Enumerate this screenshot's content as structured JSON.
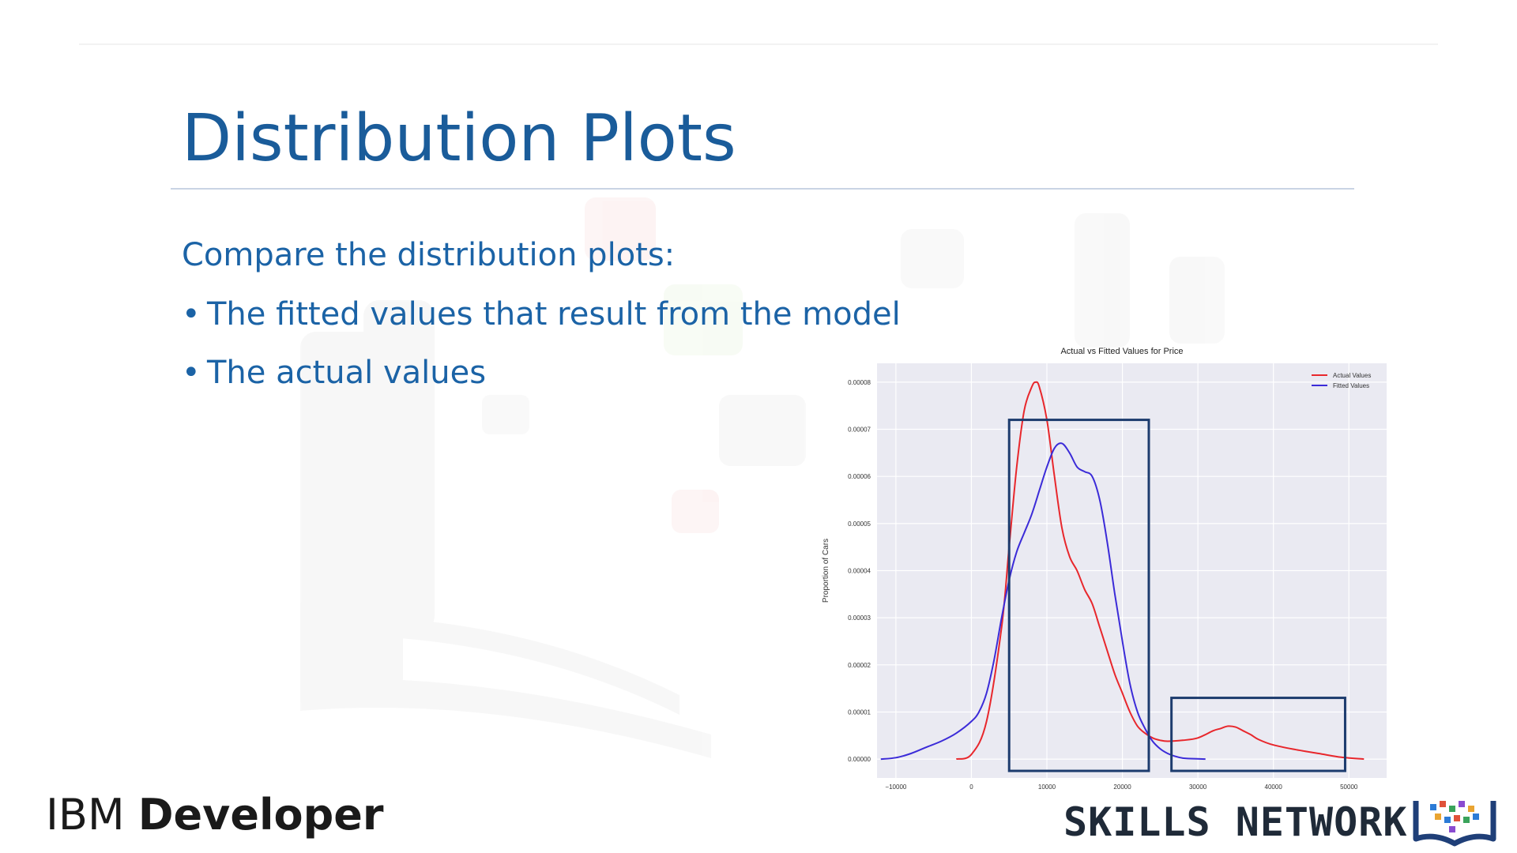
{
  "slide": {
    "title": "Distribution Plots",
    "intro": "Compare the distribution plots:",
    "bullets": [
      "The fitted values that result from the model",
      "The actual values"
    ]
  },
  "branding": {
    "ibm_light": "IBM",
    "ibm_bold": "Developer",
    "skills_network": "SKILLS NETWORK"
  },
  "colors": {
    "title": "#1a5c9a",
    "text": "#1b63a6",
    "actual": "#e8272c",
    "fitted": "#3b2bd8",
    "highlight_box": "#1d3c6e",
    "plot_bg": "#eaeaf2"
  },
  "chart_data": {
    "type": "line",
    "title": "Actual vs Fitted Values for Price",
    "ylabel": "Proportion of Cars",
    "xlabel": "",
    "xlim": [
      -12500,
      55000
    ],
    "ylim": [
      -4e-06,
      8.4e-05
    ],
    "x_ticks": [
      -10000,
      0,
      10000,
      20000,
      30000,
      40000,
      50000
    ],
    "x_tick_labels": [
      "−10000",
      "0",
      "10000",
      "20000",
      "30000",
      "40000",
      "50000"
    ],
    "y_ticks": [
      0,
      1e-05,
      2e-05,
      3e-05,
      4e-05,
      5e-05,
      6e-05,
      7e-05,
      8e-05
    ],
    "y_tick_labels": [
      "0.00000",
      "0.00001",
      "0.00002",
      "0.00003",
      "0.00004",
      "0.00005",
      "0.00006",
      "0.00007",
      "0.00008"
    ],
    "grid": true,
    "legend": "top-right",
    "series": [
      {
        "name": "Actual Values",
        "color": "#e8272c",
        "x": [
          -2000,
          0,
          2000,
          4000,
          5000,
          6000,
          7000,
          8000,
          8500,
          9000,
          10000,
          11000,
          12000,
          13000,
          14000,
          15000,
          16000,
          17000,
          18000,
          19000,
          20000,
          21000,
          22000,
          23000,
          24000,
          25000,
          26000,
          28000,
          30000,
          32000,
          33000,
          34000,
          35000,
          36000,
          37000,
          38000,
          40000,
          43000,
          46000,
          49000,
          52000
        ],
        "y": [
          0.0,
          1e-06,
          8e-06,
          2.8e-05,
          4.5e-05,
          6.2e-05,
          7.4e-05,
          7.9e-05,
          8e-05,
          7.9e-05,
          7.2e-05,
          6e-05,
          4.9e-05,
          4.3e-05,
          4e-05,
          3.6e-05,
          3.3e-05,
          2.8e-05,
          2.3e-05,
          1.8e-05,
          1.4e-05,
          1e-05,
          7e-06,
          5.5e-06,
          4.5e-06,
          4e-06,
          3.8e-06,
          4e-06,
          4.5e-06,
          6e-06,
          6.5e-06,
          7e-06,
          6.8e-06,
          6e-06,
          5.2e-06,
          4.2e-06,
          3e-06,
          2e-06,
          1.2e-06,
          4e-07,
          0.0
        ]
      },
      {
        "name": "Fitted Values",
        "color": "#3b2bd8",
        "x": [
          -12000,
          -10000,
          -8000,
          -6000,
          -4000,
          -2000,
          0,
          1000,
          2000,
          3000,
          4000,
          5000,
          6000,
          7000,
          8000,
          9000,
          10000,
          11000,
          12000,
          13000,
          14000,
          15000,
          16000,
          17000,
          18000,
          19000,
          20000,
          21000,
          22000,
          23000,
          24000,
          25000,
          26000,
          27000,
          28000,
          29000,
          31000
        ],
        "y": [
          0.0,
          3e-07,
          1.2e-06,
          2.5e-06,
          3.8e-06,
          5.5e-06,
          8e-06,
          1e-05,
          1.4e-05,
          2.1e-05,
          3e-05,
          3.8e-05,
          4.4e-05,
          4.8e-05,
          5.2e-05,
          5.7e-05,
          6.2e-05,
          6.6e-05,
          6.7e-05,
          6.5e-05,
          6.2e-05,
          6.1e-05,
          6e-05,
          5.5e-05,
          4.6e-05,
          3.5e-05,
          2.5e-05,
          1.6e-05,
          1e-05,
          6.5e-06,
          3.8e-06,
          2.2e-06,
          1.2e-06,
          6e-07,
          2e-07,
          1e-07,
          0.0
        ]
      }
    ],
    "highlight_boxes": [
      {
        "x0": 5000,
        "x1": 23500,
        "y0": -2.5e-06,
        "y1": 7.2e-05
      },
      {
        "x0": 26500,
        "x1": 49500,
        "y0": -2.5e-06,
        "y1": 1.3e-05
      }
    ]
  }
}
